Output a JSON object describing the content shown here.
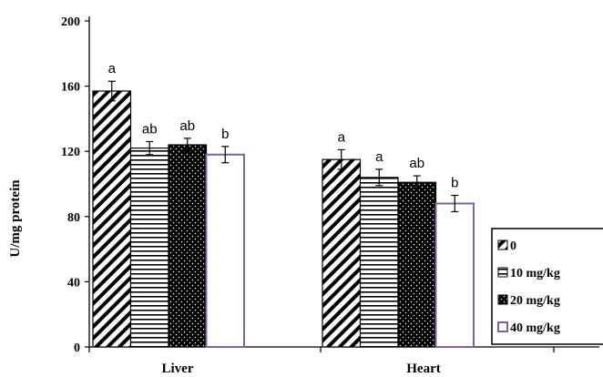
{
  "chart_data": {
    "type": "bar",
    "title": "",
    "xlabel": "",
    "ylabel": "U/mg protein",
    "ylim": [
      0,
      200
    ],
    "yticks": [
      0,
      40,
      80,
      120,
      160,
      200
    ],
    "categories": [
      "Liver",
      "Heart"
    ],
    "series": [
      {
        "name": "0",
        "pattern": "diagonal-hatch",
        "color": "#000000",
        "values": [
          157,
          115
        ],
        "errors": [
          6,
          6
        ],
        "labels": [
          "a",
          "a"
        ]
      },
      {
        "name": "10 mg/kg",
        "pattern": "horizontal-lines",
        "color": "#000000",
        "values": [
          122,
          104
        ],
        "errors": [
          4,
          5
        ],
        "labels": [
          "ab",
          "a"
        ]
      },
      {
        "name": "20 mg/kg",
        "pattern": "black-dotted",
        "color": "#000000",
        "values": [
          124,
          101
        ],
        "errors": [
          4,
          4
        ],
        "labels": [
          "ab",
          "ab"
        ]
      },
      {
        "name": "40 mg/kg",
        "pattern": "open",
        "color": "#8064a2",
        "values": [
          118,
          88
        ],
        "errors": [
          5,
          5
        ],
        "labels": [
          "b",
          "b"
        ]
      }
    ],
    "grid": false,
    "legend_position": "bottom-right"
  }
}
